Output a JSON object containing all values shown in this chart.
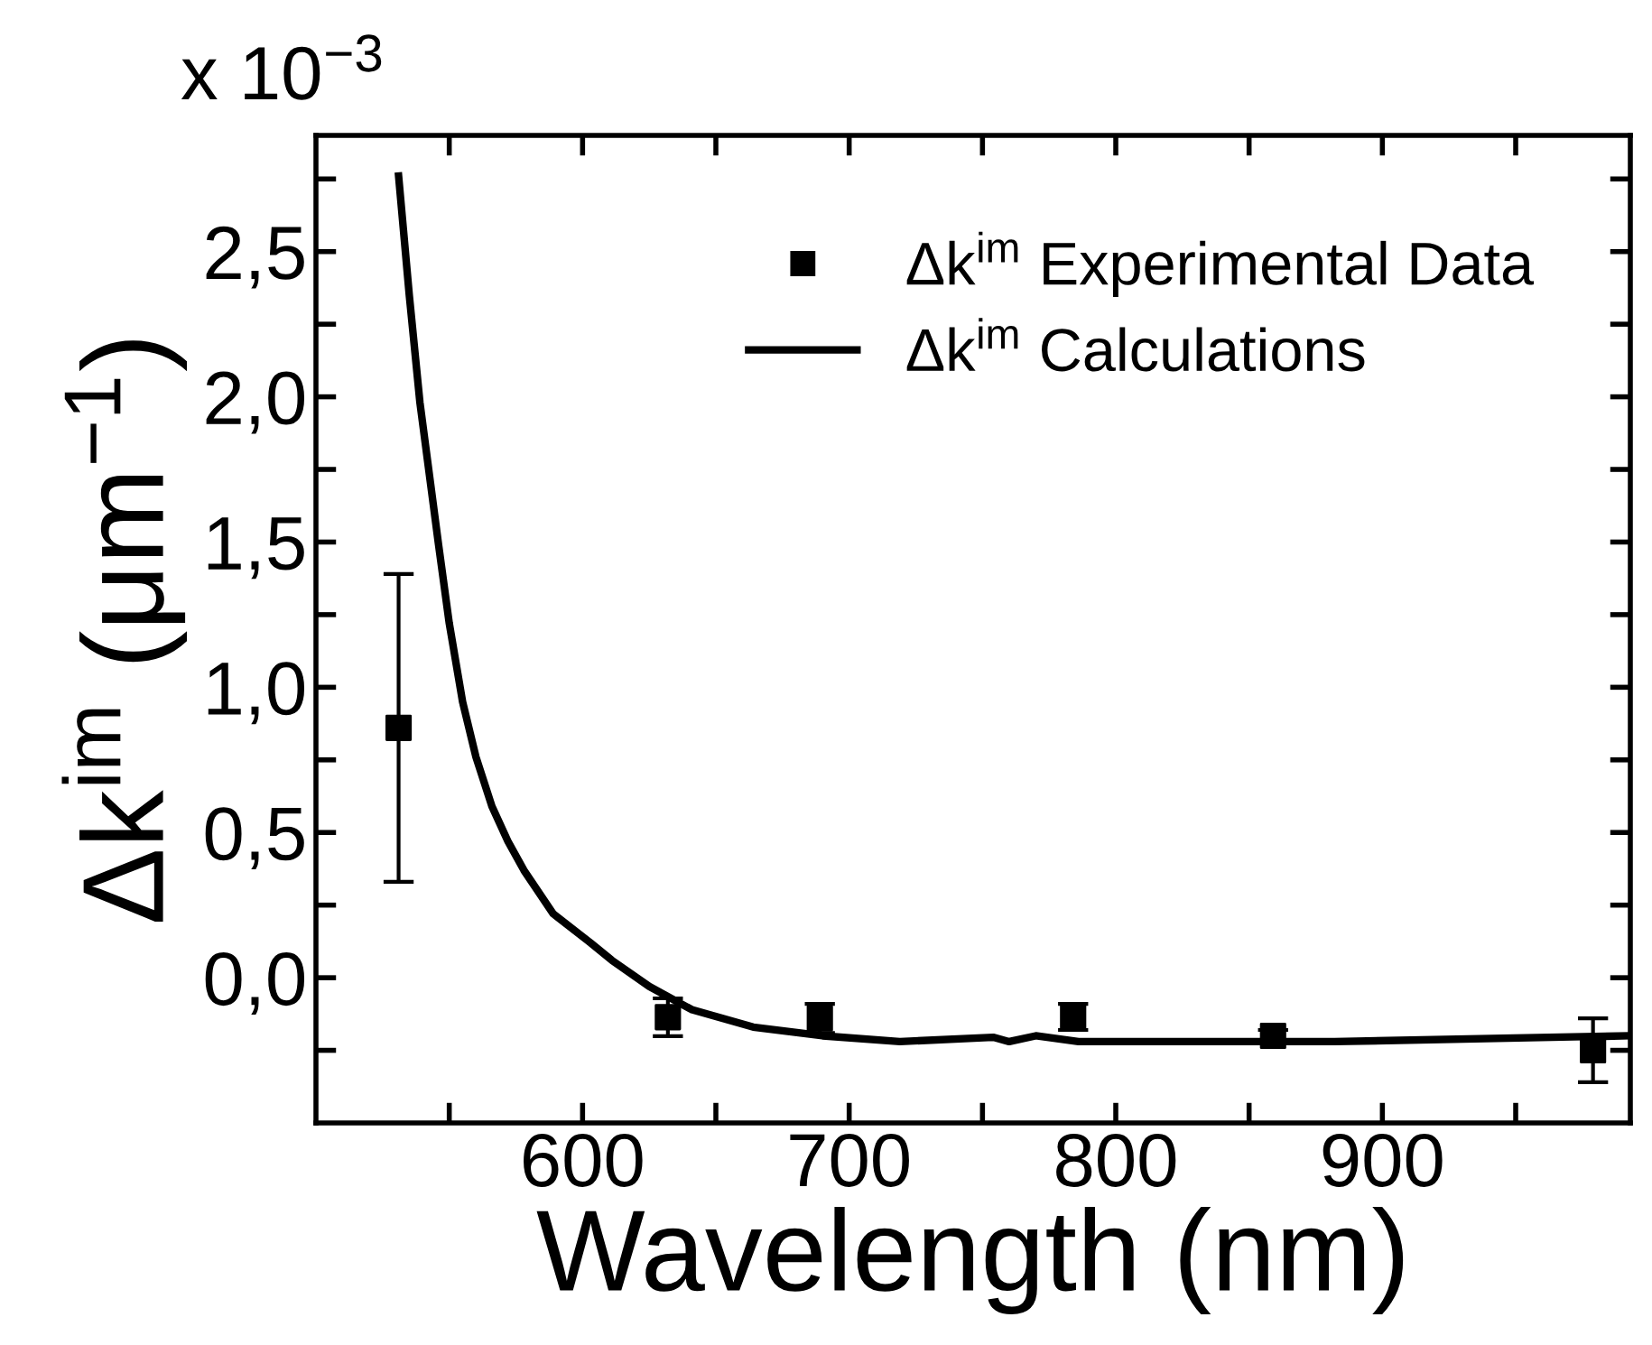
{
  "chart_data": {
    "type": "scatter",
    "xlabel": "Wavelength (nm)",
    "ylabel": "Δk$^{im}$ (μm$^{−1}$)",
    "annotations": [
      "x 10$^{−3}$"
    ],
    "series": [
      {
        "name": "Δk$^{im}$ Experimental Data",
        "color": "#000000",
        "marker": "square",
        "x": [
          531,
          632,
          689,
          784,
          859,
          979
        ],
        "values": [
          0.86,
          -0.136,
          -0.14,
          -0.135,
          -0.2,
          -0.25
        ],
        "errors": [
          0.53,
          0.065,
          0.05,
          0.045,
          0.02,
          0.11
        ]
      },
      {
        "name": "Δk$^{im}$ Calculations",
        "type": "line",
        "color": "#000000",
        "marker": "none",
        "line_style": "solid",
        "x": [
          531,
          535,
          539,
          546,
          550,
          555,
          560,
          566,
          572,
          578,
          589,
          603,
          611,
          625,
          641,
          664,
          690,
          719,
          754,
          760,
          770,
          786,
          882,
          992
        ],
        "values": [
          2.76,
          2.35,
          1.98,
          1.49,
          1.22,
          0.95,
          0.76,
          0.59,
          0.47,
          0.37,
          0.22,
          0.12,
          0.06,
          -0.03,
          -0.11,
          -0.17,
          -0.2,
          -0.22,
          -0.205,
          -0.22,
          -0.2,
          -0.22,
          -0.22,
          -0.2
        ]
      }
    ],
    "xlim": [
      500,
      993
    ],
    "ylim": [
      -0.5,
      2.9
    ],
    "xticks": [
      {
        "value": 550,
        "label": null
      },
      600,
      {
        "value": 650,
        "label": null
      },
      700,
      {
        "value": 750,
        "label": null
      },
      800,
      {
        "value": 850,
        "label": null
      },
      900,
      {
        "value": 950,
        "label": null
      }
    ],
    "yticks": [
      {
        "value": -0.25,
        "label": null
      },
      {
        "value": 0,
        "label": "0,0"
      },
      {
        "value": 0.25,
        "label": null
      },
      {
        "value": 0.5,
        "label": "0,5"
      },
      {
        "value": 0.75,
        "label": null
      },
      {
        "value": 1.0,
        "label": "1,0"
      },
      {
        "value": 1.25,
        "label": null
      },
      {
        "value": 1.5,
        "label": "1,5"
      },
      {
        "value": 1.75,
        "label": null
      },
      {
        "value": 2.0,
        "label": "2,0"
      },
      {
        "value": 2.25,
        "label": null
      },
      {
        "value": 2.5,
        "label": "2,5"
      },
      {
        "value": 2.75,
        "label": null
      }
    ],
    "grid": false,
    "legend": "top right"
  }
}
